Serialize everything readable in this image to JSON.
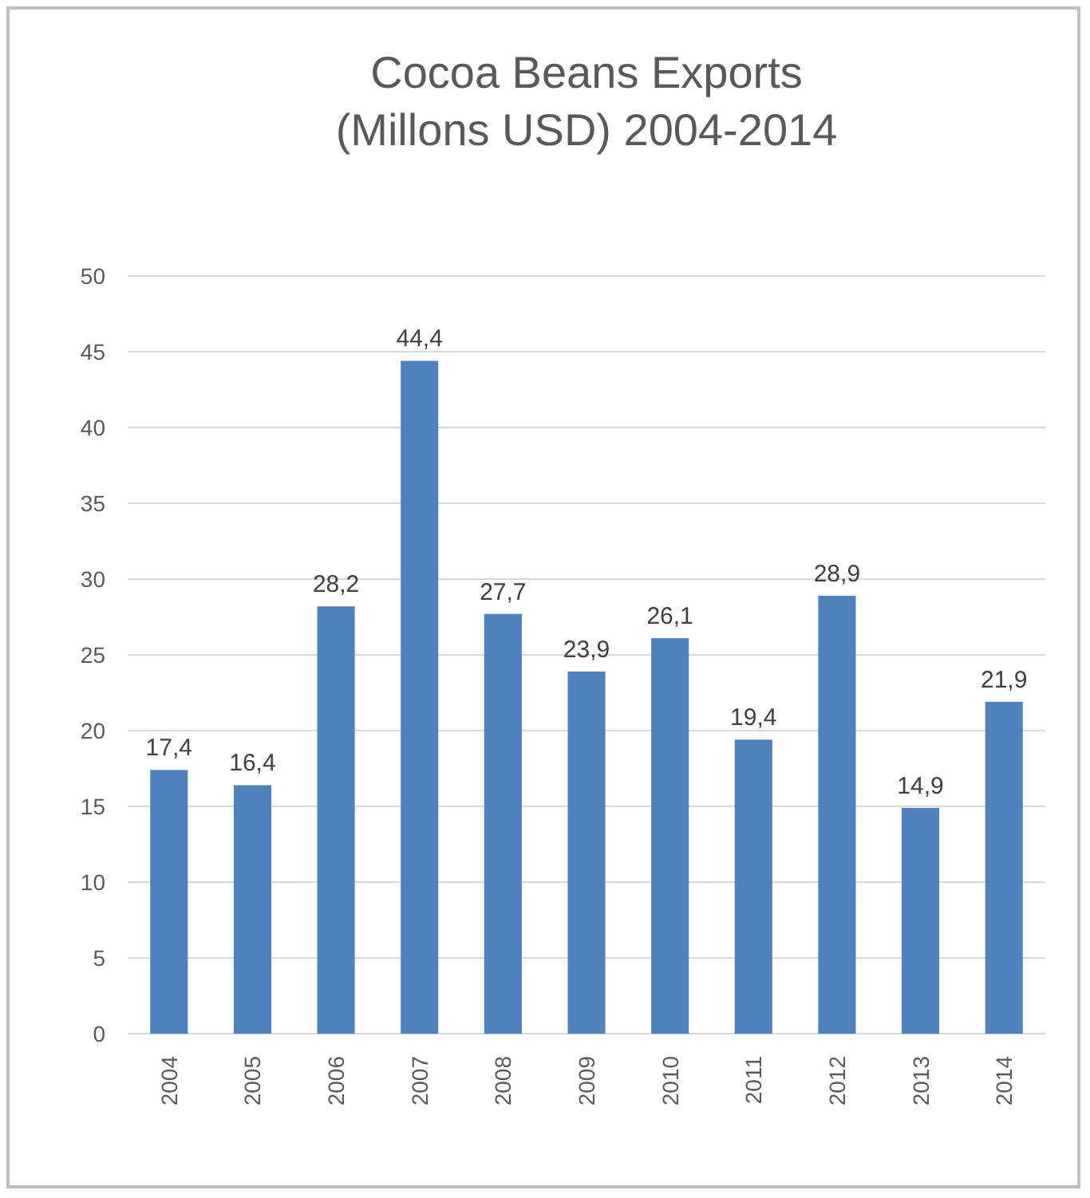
{
  "chart_data": {
    "type": "bar",
    "title": "Cocoa Beans Exports\n(Millons USD) 2004-2014",
    "categories": [
      "2004",
      "2005",
      "2006",
      "2007",
      "2008",
      "2009",
      "2010",
      "2011",
      "2012",
      "2013",
      "2014"
    ],
    "values": [
      17.4,
      16.4,
      28.2,
      44.4,
      27.7,
      23.9,
      26.1,
      19.4,
      28.9,
      14.9,
      21.9
    ],
    "value_labels": [
      "17,4",
      "16,4",
      "28,2",
      "44,4",
      "27,7",
      "23,9",
      "26,1",
      "19,4",
      "28,9",
      "14,9",
      "21,9"
    ],
    "color": "#4f81bd",
    "ylim": [
      0,
      50
    ],
    "yticks": [
      0,
      5,
      10,
      15,
      20,
      25,
      30,
      35,
      40,
      45,
      50
    ],
    "grid": "y"
  }
}
